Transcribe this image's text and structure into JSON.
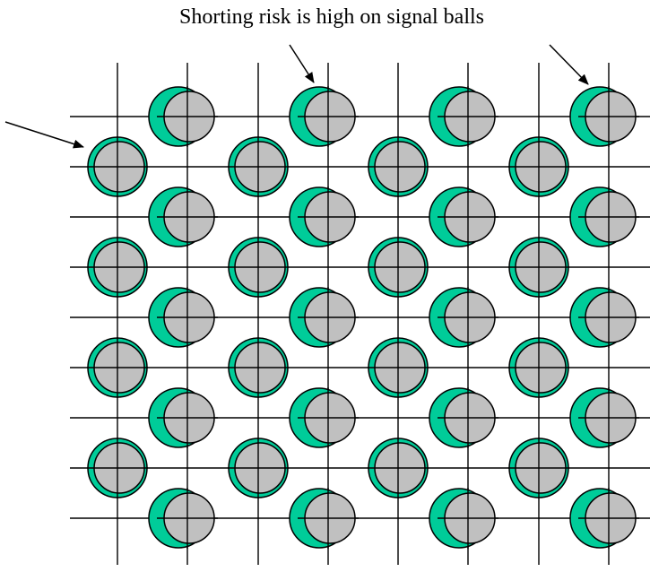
{
  "caption": "Shorting risk is high on signal balls",
  "colors": {
    "pad": "#00cc99",
    "ball": "#c0c0c0",
    "line": "#000000",
    "background": "#ffffff"
  }
}
